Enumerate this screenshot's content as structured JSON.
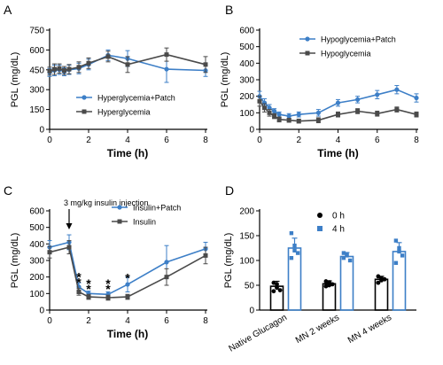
{
  "colors": {
    "blue": "#3d7fc7",
    "gray": "#4a4a4a",
    "black": "#000000"
  },
  "panels": {
    "A": {
      "letter": "A"
    },
    "B": {
      "letter": "B"
    },
    "C": {
      "letter": "C",
      "annotation": "3 mg/kg insulin injection"
    },
    "D": {
      "letter": "D"
    }
  },
  "chart_data": [
    {
      "panel": "A",
      "type": "line",
      "xlabel": "Time (h)",
      "ylabel": "PGL (mg/dL)",
      "xlim": [
        0,
        8
      ],
      "ylim": [
        0,
        750
      ],
      "xticks": [
        0,
        2,
        4,
        6,
        8
      ],
      "yticks": [
        0,
        150,
        300,
        450,
        600,
        750
      ],
      "legend_position": "bottom-left",
      "series": [
        {
          "name": "Hyperglycemia+Patch",
          "color": "#3d7fc7",
          "x": [
            0,
            0.25,
            0.5,
            0.75,
            1,
            1.5,
            2,
            3,
            4,
            6,
            8
          ],
          "y": [
            430,
            445,
            450,
            435,
            450,
            460,
            490,
            560,
            535,
            455,
            445
          ],
          "err": [
            30,
            40,
            35,
            30,
            35,
            40,
            40,
            40,
            60,
            100,
            45
          ]
        },
        {
          "name": "Hyperglycemia",
          "color": "#4a4a4a",
          "x": [
            0,
            0.25,
            0.5,
            0.75,
            1,
            1.5,
            2,
            3,
            4,
            6,
            8
          ],
          "y": [
            440,
            455,
            460,
            445,
            455,
            470,
            500,
            550,
            490,
            565,
            490
          ],
          "err": [
            30,
            40,
            35,
            30,
            35,
            40,
            40,
            40,
            60,
            50,
            60
          ]
        }
      ]
    },
    {
      "panel": "B",
      "type": "line",
      "xlabel": "Time (h)",
      "ylabel": "PGL (mg/dL)",
      "xlim": [
        0,
        8
      ],
      "ylim": [
        0,
        600
      ],
      "xticks": [
        0,
        2,
        4,
        6,
        8
      ],
      "yticks": [
        0,
        100,
        200,
        300,
        400,
        500,
        600
      ],
      "legend_position": "top-center",
      "series": [
        {
          "name": "Hypoglycemia+Patch",
          "color": "#3d7fc7",
          "x": [
            0,
            0.25,
            0.5,
            0.75,
            1,
            1.5,
            2,
            3,
            4,
            5,
            6,
            7,
            8
          ],
          "y": [
            200,
            160,
            130,
            110,
            90,
            80,
            90,
            100,
            160,
            180,
            210,
            240,
            190
          ],
          "err": [
            30,
            25,
            20,
            15,
            15,
            15,
            15,
            20,
            20,
            20,
            25,
            25,
            25
          ]
        },
        {
          "name": "Hypoglycemia",
          "color": "#4a4a4a",
          "x": [
            0,
            0.25,
            0.5,
            0.75,
            1,
            1.5,
            2,
            3,
            4,
            5,
            6,
            7,
            8
          ],
          "y": [
            170,
            130,
            100,
            80,
            60,
            55,
            50,
            55,
            90,
            110,
            95,
            120,
            90
          ],
          "err": [
            30,
            25,
            20,
            15,
            15,
            12,
            12,
            15,
            15,
            15,
            15,
            15,
            15
          ]
        }
      ]
    },
    {
      "panel": "C",
      "type": "line",
      "xlabel": "Time (h)",
      "ylabel": "PGL (mg/dL)",
      "xlim": [
        0,
        8
      ],
      "ylim": [
        0,
        600
      ],
      "xticks": [
        0,
        2,
        4,
        6,
        8
      ],
      "yticks": [
        0,
        100,
        200,
        300,
        400,
        500,
        600
      ],
      "legend_position": "top-right",
      "annotation_x": 1,
      "significance": [
        {
          "x": 1.5,
          "y": 205,
          "label": "*"
        },
        {
          "x": 1.5,
          "y": 175,
          "label": "*"
        },
        {
          "x": 2,
          "y": 165,
          "label": "*"
        },
        {
          "x": 2,
          "y": 135,
          "label": "*"
        },
        {
          "x": 3,
          "y": 165,
          "label": "*"
        },
        {
          "x": 3,
          "y": 135,
          "label": "*"
        },
        {
          "x": 4,
          "y": 200,
          "label": "*"
        }
      ],
      "series": [
        {
          "name": "Insulin+Patch",
          "color": "#3d7fc7",
          "x": [
            0,
            1,
            1.5,
            2,
            3,
            4,
            6,
            8
          ],
          "y": [
            380,
            410,
            140,
            100,
            95,
            155,
            290,
            370
          ],
          "err": [
            40,
            45,
            25,
            15,
            15,
            45,
            100,
            40
          ]
        },
        {
          "name": "Insulin",
          "color": "#4a4a4a",
          "x": [
            0,
            1,
            1.5,
            2,
            3,
            4,
            6,
            8
          ],
          "y": [
            350,
            380,
            110,
            80,
            75,
            80,
            200,
            330
          ],
          "err": [
            35,
            40,
            20,
            15,
            15,
            15,
            50,
            50
          ]
        }
      ]
    },
    {
      "panel": "D",
      "type": "bar",
      "ylabel": "PGL (mg/dL)",
      "ylim": [
        0,
        200
      ],
      "yticks": [
        0,
        50,
        100,
        150,
        200
      ],
      "categories": [
        "Native Glucagon",
        "MN 2 weeks",
        "MN 4 weeks"
      ],
      "legend_position": "top-center",
      "series": [
        {
          "name": "0 h",
          "color": "#000000",
          "values": [
            48,
            53,
            62
          ],
          "err": [
            10,
            6,
            6
          ],
          "points": [
            [
              55,
              52,
              40,
              38,
              45
            ],
            [
              58,
              56,
              52,
              48,
              50
            ],
            [
              68,
              60,
              62,
              55,
              64
            ]
          ]
        },
        {
          "name": "4 h",
          "color": "#3d7fc7",
          "values": [
            125,
            108,
            118
          ],
          "err": [
            20,
            8,
            18
          ],
          "points": [
            [
              155,
              130,
              115,
              105,
              120
            ],
            [
              115,
              110,
              100,
              105,
              112
            ],
            [
              140,
              125,
              110,
              95,
              118
            ]
          ]
        }
      ]
    }
  ]
}
